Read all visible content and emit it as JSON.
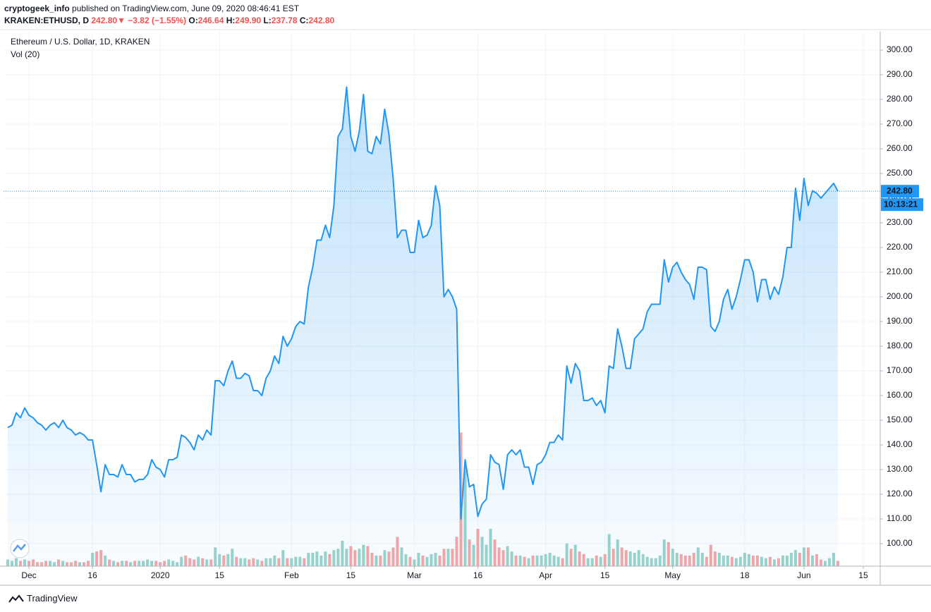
{
  "header": {
    "author": "cryptogeek_info",
    "published": "published on TradingView.com, June 09, 2020 08:46:41 EST",
    "symbol": "KRAKEN:ETHUSD, D",
    "last": "242.80",
    "arrow": "▼",
    "change": "−3.82 (−1.55%)",
    "ohlc": [
      {
        "label": "O:",
        "value": "246.64"
      },
      {
        "label": "H:",
        "value": "249.90"
      },
      {
        "label": "L:",
        "value": "237.78"
      },
      {
        "label": "C:",
        "value": "242.80"
      }
    ]
  },
  "chart_data": {
    "type": "line",
    "x": [
      "2019-11-26",
      "2019-11-27",
      "2019-11-28",
      "2019-11-29",
      "2019-11-30",
      "2019-12-01",
      "2019-12-02",
      "2019-12-03",
      "2019-12-04",
      "2019-12-05",
      "2019-12-06",
      "2019-12-07",
      "2019-12-08",
      "2019-12-09",
      "2019-12-10",
      "2019-12-11",
      "2019-12-12",
      "2019-12-13",
      "2019-12-14",
      "2019-12-15",
      "2019-12-16",
      "2019-12-17",
      "2019-12-18",
      "2019-12-19",
      "2019-12-20",
      "2019-12-21",
      "2019-12-22",
      "2019-12-23",
      "2019-12-24",
      "2019-12-25",
      "2019-12-26",
      "2019-12-27",
      "2019-12-28",
      "2019-12-29",
      "2019-12-30",
      "2019-12-31",
      "2020-01-01",
      "2020-01-02",
      "2020-01-03",
      "2020-01-04",
      "2020-01-05",
      "2020-01-06",
      "2020-01-07",
      "2020-01-08",
      "2020-01-09",
      "2020-01-10",
      "2020-01-11",
      "2020-01-12",
      "2020-01-13",
      "2020-01-14",
      "2020-01-15",
      "2020-01-16",
      "2020-01-17",
      "2020-01-18",
      "2020-01-19",
      "2020-01-20",
      "2020-01-21",
      "2020-01-22",
      "2020-01-23",
      "2020-01-24",
      "2020-01-25",
      "2020-01-26",
      "2020-01-27",
      "2020-01-28",
      "2020-01-29",
      "2020-01-30",
      "2020-01-31",
      "2020-02-01",
      "2020-02-02",
      "2020-02-03",
      "2020-02-04",
      "2020-02-05",
      "2020-02-06",
      "2020-02-07",
      "2020-02-08",
      "2020-02-09",
      "2020-02-10",
      "2020-02-11",
      "2020-02-12",
      "2020-02-13",
      "2020-02-14",
      "2020-02-15",
      "2020-02-16",
      "2020-02-17",
      "2020-02-18",
      "2020-02-19",
      "2020-02-20",
      "2020-02-21",
      "2020-02-22",
      "2020-02-23",
      "2020-02-24",
      "2020-02-25",
      "2020-02-26",
      "2020-02-27",
      "2020-02-28",
      "2020-02-29",
      "2020-03-01",
      "2020-03-02",
      "2020-03-03",
      "2020-03-04",
      "2020-03-05",
      "2020-03-06",
      "2020-03-07",
      "2020-03-08",
      "2020-03-09",
      "2020-03-10",
      "2020-03-11",
      "2020-03-12",
      "2020-03-13",
      "2020-03-14",
      "2020-03-15",
      "2020-03-16",
      "2020-03-17",
      "2020-03-18",
      "2020-03-19",
      "2020-03-20",
      "2020-03-21",
      "2020-03-22",
      "2020-03-23",
      "2020-03-24",
      "2020-03-25",
      "2020-03-26",
      "2020-03-27",
      "2020-03-28",
      "2020-03-29",
      "2020-03-30",
      "2020-03-31",
      "2020-04-01",
      "2020-04-02",
      "2020-04-03",
      "2020-04-04",
      "2020-04-05",
      "2020-04-06",
      "2020-04-07",
      "2020-04-08",
      "2020-04-09",
      "2020-04-10",
      "2020-04-11",
      "2020-04-12",
      "2020-04-13",
      "2020-04-14",
      "2020-04-15",
      "2020-04-16",
      "2020-04-17",
      "2020-04-18",
      "2020-04-19",
      "2020-04-20",
      "2020-04-21",
      "2020-04-22",
      "2020-04-23",
      "2020-04-24",
      "2020-04-25",
      "2020-04-26",
      "2020-04-27",
      "2020-04-28",
      "2020-04-29",
      "2020-04-30",
      "2020-05-01",
      "2020-05-02",
      "2020-05-03",
      "2020-05-04",
      "2020-05-05",
      "2020-05-06",
      "2020-05-07",
      "2020-05-08",
      "2020-05-09",
      "2020-05-10",
      "2020-05-11",
      "2020-05-12",
      "2020-05-13",
      "2020-05-14",
      "2020-05-15",
      "2020-05-16",
      "2020-05-17",
      "2020-05-18",
      "2020-05-19",
      "2020-05-20",
      "2020-05-21",
      "2020-05-22",
      "2020-05-23",
      "2020-05-24",
      "2020-05-25",
      "2020-05-26",
      "2020-05-27",
      "2020-05-28",
      "2020-05-29",
      "2020-05-30",
      "2020-05-31",
      "2020-06-01",
      "2020-06-02",
      "2020-06-03",
      "2020-06-04",
      "2020-06-05",
      "2020-06-06",
      "2020-06-07",
      "2020-06-08",
      "2020-06-09"
    ],
    "series": [
      {
        "name": "Ethereum / U.S. Dollar, 1D, KRAKEN",
        "color": "#2196f3",
        "values": [
          147,
          148,
          153,
          151,
          155,
          152,
          151,
          149,
          148,
          146,
          148,
          149,
          147,
          150,
          147,
          146,
          144,
          145,
          144,
          142,
          142,
          132,
          121,
          132,
          128,
          128,
          127,
          132,
          128,
          128,
          125,
          126,
          126,
          128,
          134,
          131,
          130,
          127,
          134,
          134,
          135,
          144,
          143,
          141,
          138,
          144,
          142,
          146,
          144,
          166,
          166,
          164,
          170,
          174,
          167,
          167,
          169,
          168,
          162,
          162,
          160,
          167,
          170,
          176,
          173,
          184,
          180,
          183,
          188,
          190,
          189,
          204,
          212,
          223,
          223,
          229,
          224,
          237,
          265,
          268,
          285,
          265,
          259,
          267,
          282,
          259,
          258,
          265,
          262,
          276,
          266,
          248,
          224,
          227,
          227,
          218,
          218,
          231,
          224,
          225,
          229,
          245,
          237,
          200,
          203,
          200,
          195,
          110,
          134,
          123,
          124,
          111,
          116,
          118,
          136,
          133,
          132,
          122,
          136,
          138,
          136,
          138,
          131,
          131,
          124,
          132,
          133,
          136,
          141,
          141,
          144,
          142,
          172,
          165,
          173,
          170,
          158,
          158,
          159,
          156,
          158,
          153,
          172,
          171,
          187,
          180,
          171,
          171,
          183,
          185,
          187,
          194,
          197,
          197,
          197,
          215,
          206,
          212,
          214,
          210,
          207,
          205,
          199,
          212,
          212,
          211,
          188,
          186,
          190,
          199,
          203,
          195,
          200,
          207,
          215,
          215,
          210,
          198,
          207,
          207,
          199,
          204,
          201,
          208,
          220,
          220,
          244,
          231,
          248,
          237,
          243,
          242,
          240,
          242,
          244,
          246,
          242.8
        ]
      }
    ],
    "volume": {
      "name": "Vol (20)",
      "ylim": [
        0,
        400
      ],
      "up_color": "#9ad3ca",
      "down_color": "#f4a7a7",
      "values": [
        5,
        4,
        6,
        4,
        5,
        4,
        5,
        3,
        3,
        4,
        4,
        3,
        5,
        4,
        3,
        3,
        4,
        3,
        3,
        4,
        10,
        11,
        12,
        8,
        5,
        4,
        3,
        4,
        4,
        3,
        4,
        4,
        4,
        5,
        4,
        4,
        3,
        4,
        5,
        4,
        3,
        7,
        8,
        6,
        5,
        7,
        6,
        5,
        5,
        14,
        9,
        8,
        9,
        13,
        7,
        6,
        6,
        5,
        6,
        5,
        4,
        6,
        6,
        8,
        6,
        12,
        6,
        6,
        7,
        7,
        6,
        10,
        10,
        11,
        8,
        11,
        9,
        12,
        13,
        19,
        13,
        15,
        12,
        13,
        16,
        15,
        10,
        8,
        8,
        12,
        11,
        14,
        22,
        14,
        9,
        7,
        5,
        10,
        8,
        7,
        9,
        10,
        8,
        13,
        13,
        13,
        22,
        100,
        75,
        20,
        16,
        28,
        22,
        16,
        28,
        20,
        14,
        12,
        15,
        11,
        8,
        8,
        7,
        6,
        8,
        8,
        8,
        9,
        10,
        8,
        7,
        6,
        17,
        13,
        16,
        11,
        9,
        6,
        6,
        8,
        7,
        9,
        24,
        13,
        20,
        14,
        12,
        11,
        10,
        12,
        9,
        7,
        6,
        6,
        8,
        20,
        18,
        13,
        10,
        9,
        8,
        8,
        10,
        14,
        10,
        7,
        16,
        11,
        10,
        8,
        8,
        7,
        6,
        7,
        10,
        9,
        8,
        8,
        7,
        6,
        7,
        5,
        6,
        8,
        8,
        10,
        12,
        10,
        14,
        14,
        8,
        9,
        5,
        4,
        6,
        10,
        4
      ]
    },
    "xlim": [
      "2019-11-25",
      "2020-06-19"
    ],
    "ylim": [
      90.86,
      307.43
    ],
    "xticks": [
      {
        "value": "2019-12-01",
        "label": "Dec"
      },
      {
        "value": "2019-12-16",
        "label": "16"
      },
      {
        "value": "2020-01-01",
        "label": "2020"
      },
      {
        "value": "2020-01-15",
        "label": "15"
      },
      {
        "value": "2020-02-01",
        "label": "Feb"
      },
      {
        "value": "2020-02-15",
        "label": "15"
      },
      {
        "value": "2020-03-01",
        "label": "Mar"
      },
      {
        "value": "2020-03-16",
        "label": "16"
      },
      {
        "value": "2020-04-01",
        "label": "Apr"
      },
      {
        "value": "2020-04-15",
        "label": "15"
      },
      {
        "value": "2020-05-01",
        "label": "May"
      },
      {
        "value": "2020-05-18",
        "label": "18"
      },
      {
        "value": "2020-06-01",
        "label": "Jun"
      },
      {
        "value": "2020-06-15",
        "label": "15"
      }
    ],
    "yticks": [
      {
        "value": 100,
        "label": "100.00"
      },
      {
        "value": 110,
        "label": "110.00"
      },
      {
        "value": 120,
        "label": "120.00"
      },
      {
        "value": 130,
        "label": "130.00"
      },
      {
        "value": 140,
        "label": "140.00"
      },
      {
        "value": 150,
        "label": "150.00"
      },
      {
        "value": 160,
        "label": "160.00"
      },
      {
        "value": 170,
        "label": "170.00"
      },
      {
        "value": 180,
        "label": "180.00"
      },
      {
        "value": 190,
        "label": "190.00"
      },
      {
        "value": 200,
        "label": "200.00"
      },
      {
        "value": 210,
        "label": "210.00"
      },
      {
        "value": 220,
        "label": "220.00"
      },
      {
        "value": 230,
        "label": "230.00"
      },
      {
        "value": 240,
        "label": "240.00"
      },
      {
        "value": 250,
        "label": "250.00"
      },
      {
        "value": 260,
        "label": "260.00"
      },
      {
        "value": 270,
        "label": "270.00"
      },
      {
        "value": 280,
        "label": "280.00"
      },
      {
        "value": 290,
        "label": "290.00"
      },
      {
        "value": 300,
        "label": "300.00"
      }
    ],
    "grid": true,
    "last_price": {
      "value": 242.8,
      "label": "242.80",
      "countdown": "10:13:21",
      "color": "#2196f3"
    }
  },
  "footer": {
    "brand": "TradingView"
  }
}
